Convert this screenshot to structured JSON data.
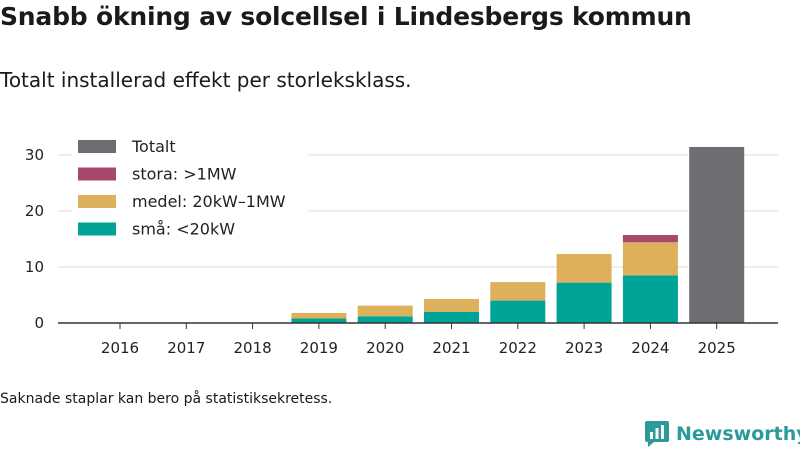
{
  "title": "Snabb ökning av solcellsel i Lindesbergs kommun",
  "subtitle": "Totalt installerad effekt per storleksklass.",
  "note": "Saknade staplar kan bero på statistiksekretess.",
  "brand": "Newsworthy",
  "colors": {
    "sma": "#00a398",
    "medel": "#ddb05b",
    "stora": "#a7486d",
    "totalt": "#6e6e72",
    "grid": "#dddddd",
    "axis": "#333333"
  },
  "chart_data": {
    "type": "bar",
    "stacked": true,
    "categories": [
      "2016",
      "2017",
      "2018",
      "2019",
      "2020",
      "2021",
      "2022",
      "2023",
      "2024",
      "2025"
    ],
    "series": [
      {
        "key": "sma",
        "name": "små: <20kW",
        "values": [
          0,
          0,
          0,
          0.8,
          1.2,
          2.0,
          4.0,
          7.2,
          8.5,
          0
        ]
      },
      {
        "key": "medel",
        "name": "medel: 20kW–1MW",
        "values": [
          0,
          0,
          0,
          1.0,
          1.9,
          2.3,
          3.3,
          5.1,
          5.9,
          0
        ]
      },
      {
        "key": "stora",
        "name": "stora: >1MW",
        "values": [
          0,
          0,
          0,
          0,
          0,
          0,
          0,
          0,
          1.3,
          0
        ]
      },
      {
        "key": "totalt",
        "name": "Totalt",
        "values": [
          0,
          0,
          0,
          0,
          0,
          0,
          0,
          0,
          0,
          31.4
        ]
      }
    ],
    "legend_order": [
      "totalt",
      "stora",
      "medel",
      "sma"
    ],
    "legend_position": "top-left",
    "yticks": [
      0,
      10,
      20,
      30
    ],
    "ylim": [
      0,
      33
    ],
    "xlabel": "",
    "ylabel": "",
    "grid": true
  }
}
